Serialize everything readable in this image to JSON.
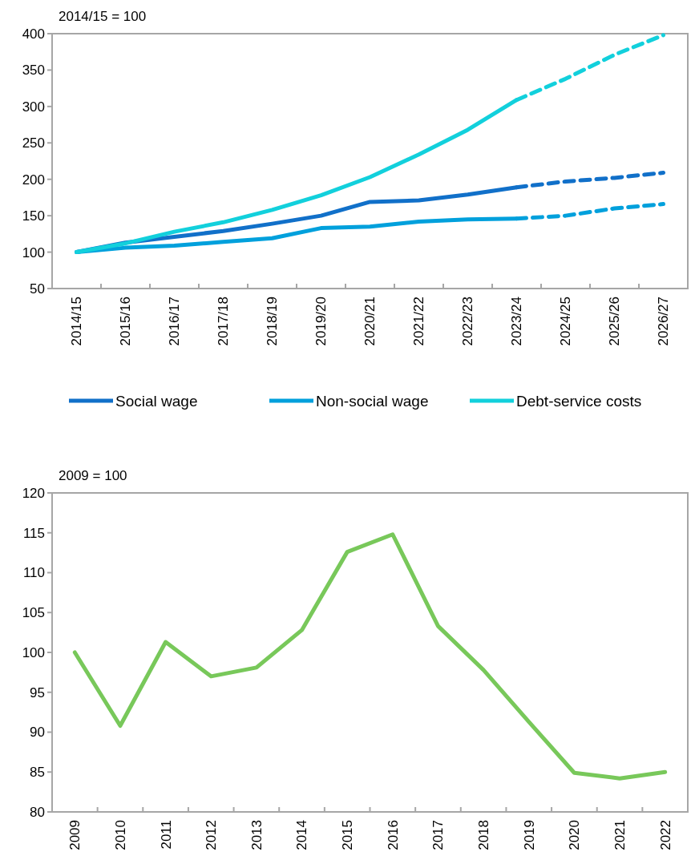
{
  "chart_data": [
    {
      "type": "line",
      "ylabel": "2014/15 = 100",
      "categories": [
        "2014/15",
        "2015/16",
        "2016/17",
        "2017/18",
        "2018/19",
        "2019/20",
        "2020/21",
        "2021/22",
        "2022/23",
        "2023/24",
        "2024/25",
        "2025/26",
        "2026/27"
      ],
      "series": [
        {
          "name": "Social wage",
          "color": "#1170c9",
          "line_style": "solid",
          "values": [
            100,
            113,
            121,
            129,
            139,
            150,
            169,
            171,
            179,
            189,
            null,
            null,
            null
          ]
        },
        {
          "name": "Non-social wage",
          "color": "#00a0dc",
          "line_style": "solid",
          "values": [
            100,
            106,
            109,
            114,
            119,
            133,
            135,
            142,
            145,
            146,
            null,
            null,
            null
          ]
        },
        {
          "name": "Debt-service costs",
          "color": "#12d0dc",
          "line_style": "solid",
          "values": [
            100,
            112,
            128,
            141,
            158,
            178,
            203,
            234,
            268,
            309,
            null,
            null,
            null
          ]
        },
        {
          "color": "#1170c9",
          "line_style": "dashed",
          "values": [
            null,
            null,
            null,
            null,
            null,
            null,
            null,
            null,
            null,
            189,
            197,
            202,
            209
          ]
        },
        {
          "color": "#00a0dc",
          "line_style": "dashed",
          "values": [
            null,
            null,
            null,
            null,
            null,
            null,
            null,
            null,
            null,
            146,
            150,
            160,
            166
          ]
        },
        {
          "color": "#12d0dc",
          "line_style": "dashed",
          "values": [
            null,
            null,
            null,
            null,
            null,
            null,
            null,
            null,
            null,
            309,
            338,
            371,
            398
          ]
        }
      ],
      "ylim": [
        50,
        400
      ],
      "yticks": [
        50,
        100,
        150,
        200,
        250,
        300,
        350,
        400
      ],
      "legend": "bottom"
    },
    {
      "type": "line",
      "ylabel": "2009 = 100",
      "categories": [
        "2009",
        "2010",
        "2011",
        "2012",
        "2013",
        "2014",
        "2015",
        "2016",
        "2017",
        "2018",
        "2019",
        "2020",
        "2021",
        "2022"
      ],
      "series": [
        {
          "color": "#78c85a",
          "values": [
            100,
            90.8,
            101.3,
            97,
            98.1,
            102.8,
            112.6,
            114.8,
            103.3,
            97.8,
            91.3,
            84.9,
            84.2,
            85
          ]
        }
      ],
      "ylim": [
        80,
        120
      ],
      "yticks": [
        80,
        85,
        90,
        95,
        100,
        105,
        110,
        115,
        120
      ]
    }
  ]
}
